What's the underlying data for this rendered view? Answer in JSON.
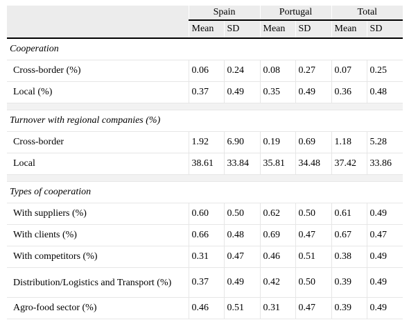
{
  "columns": {
    "groups": [
      "Spain",
      "Portugal",
      "Total"
    ],
    "sub": [
      "Mean",
      "SD",
      "Mean",
      "SD",
      "Mean",
      "SD"
    ]
  },
  "sections": [
    {
      "title": "Cooperation",
      "rows": [
        {
          "label": "Cross-border (%)",
          "values": [
            "0.06",
            "0.24",
            "0.08",
            "0.27",
            "0.07",
            "0.25"
          ]
        },
        {
          "label": "Local (%)",
          "values": [
            "0.37",
            "0.49",
            "0.35",
            "0.49",
            "0.36",
            "0.48"
          ]
        }
      ]
    },
    {
      "title": "Turnover with regional companies (%)",
      "rows": [
        {
          "label": "Cross-border",
          "values": [
            "1.92",
            "6.90",
            "0.19",
            "0.69",
            "1.18",
            "5.28"
          ]
        },
        {
          "label": "Local",
          "values": [
            "38.61",
            "33.84",
            "35.81",
            "34.48",
            "37.42",
            "33.86"
          ]
        }
      ]
    },
    {
      "title": "Types of cooperation",
      "rows": [
        {
          "label": "With suppliers (%)",
          "values": [
            "0.60",
            "0.50",
            "0.62",
            "0.50",
            "0.61",
            "0.49"
          ]
        },
        {
          "label": "With clients (%)",
          "values": [
            "0.66",
            "0.48",
            "0.69",
            "0.47",
            "0.67",
            "0.47"
          ]
        },
        {
          "label": "With competitors (%)",
          "values": [
            "0.31",
            "0.47",
            "0.46",
            "0.51",
            "0.38",
            "0.49"
          ]
        },
        {
          "label": "Distribution/Logistics and Transport (%)",
          "values": [
            "0.37",
            "0.49",
            "0.42",
            "0.50",
            "0.39",
            "0.49"
          ]
        },
        {
          "label": "Agro-food sector (%)",
          "values": [
            "0.46",
            "0.51",
            "0.31",
            "0.47",
            "0.39",
            "0.49"
          ]
        }
      ]
    }
  ]
}
